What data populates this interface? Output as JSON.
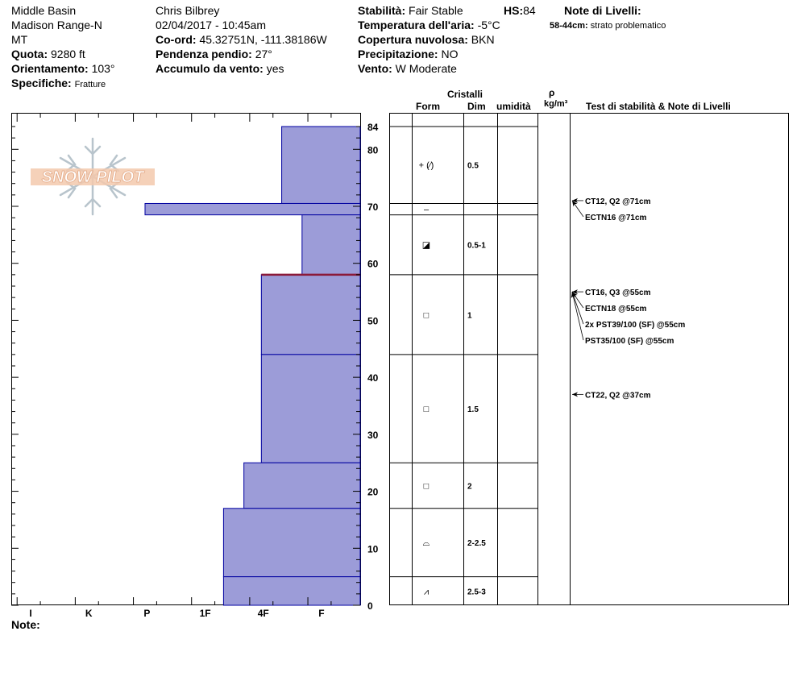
{
  "header": {
    "col1": [
      "Middle Basin",
      "Madison Range-N",
      "MT"
    ],
    "quota_label": "Quota:",
    "quota_value": "9280 ft",
    "orient_label": "Orientamento:",
    "orient_value": "103°",
    "spec_label": "Specifiche:",
    "spec_value": "Fratture",
    "observer": "Chris Bilbrey",
    "datetime": "02/04/2017 - 10:45am",
    "coord_label": "Co-ord:",
    "coord_value": "45.32751N, -111.38186W",
    "pend_label": "Pendenza pendio:",
    "pend_value": "27°",
    "accum_label": "Accumulo da vento:",
    "accum_value": "yes",
    "stab_label": "Stabilità:",
    "stab_value": "Fair Stable",
    "hs_label": "HS:",
    "hs_value": "84",
    "temp_label": "Temperatura dell'aria:",
    "temp_value": "-5°C",
    "cop_label": "Copertura nuvolosa:",
    "cop_value": "BKN",
    "prec_label": "Precipitazione:",
    "prec_value": "NO",
    "vento_label": "Vento:",
    "vento_value": "W Moderate",
    "note_livelli_title": "Note di Livelli:",
    "note_livelli_range": "58-44cm:",
    "note_livelli_text": "strato problematico"
  },
  "logo": {
    "text": "SNOW PILOT"
  },
  "columns": {
    "cristalli": "Cristalli",
    "form": "Form",
    "dim": "Dim",
    "umidita": "umidità",
    "rho": "ρ",
    "density_unit": "kg/m³",
    "tests": "Test di stabilità & Note di Livelli"
  },
  "footer": {
    "note_label": "Note:"
  },
  "colors": {
    "fill": "#9c9cd8",
    "line": "#0000a0",
    "weak_layer": "#8b1a3a"
  },
  "chart_data": {
    "type": "snow-profile",
    "total_depth_cm": 84,
    "y_ticks": [
      84,
      80,
      70,
      60,
      50,
      40,
      30,
      20,
      10,
      0
    ],
    "hardness_labels": [
      "I",
      "K",
      "P",
      "1F",
      "4F",
      "F"
    ],
    "hardness_scale_max": 6,
    "layers": [
      {
        "top": 84,
        "bottom": 70.5,
        "hardness": 1.35,
        "form": "+ (⁄)",
        "dim": "0.5"
      },
      {
        "top": 70.5,
        "bottom": 68.5,
        "hardness": 3.7,
        "form": "–",
        "dim": ""
      },
      {
        "top": 68.5,
        "bottom": 58,
        "hardness": 1.0,
        "form": "◪",
        "dim": "0.5-1"
      },
      {
        "top": 58,
        "bottom": 44,
        "hardness": 1.7,
        "form": "□",
        "dim": "1"
      },
      {
        "top": 44,
        "bottom": 25,
        "hardness": 1.7,
        "form": "□",
        "dim": "1.5"
      },
      {
        "top": 25,
        "bottom": 17,
        "hardness": 2.0,
        "form": "□",
        "dim": "2"
      },
      {
        "top": 17,
        "bottom": 5,
        "hardness": 2.35,
        "form": "⌓",
        "dim": "2-2.5"
      },
      {
        "top": 5,
        "bottom": 0,
        "hardness": 2.35,
        "form": "⩘",
        "dim": "2.5-3"
      }
    ],
    "weak_layer_cm": 58,
    "tests": [
      {
        "depth": 71,
        "label": "CT12, Q2 @71cm"
      },
      {
        "depth": 71,
        "label": "ECTN16 @71cm"
      },
      {
        "depth": 55,
        "label": "CT16, Q3 @55cm"
      },
      {
        "depth": 55,
        "label": "ECTN18 @55cm"
      },
      {
        "depth": 55,
        "label": "2x PST39/100 (SF) @55cm"
      },
      {
        "depth": 55,
        "label": "PST35/100 (SF) @55cm"
      },
      {
        "depth": 37,
        "label": "CT22, Q2 @37cm"
      }
    ]
  }
}
